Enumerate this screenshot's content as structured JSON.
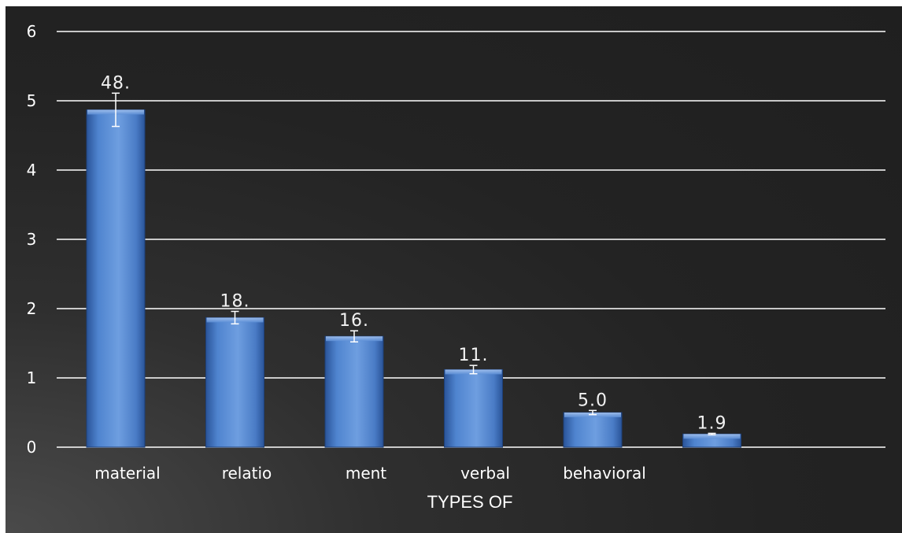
{
  "chart_data": {
    "type": "bar",
    "categories": [
      "material",
      "relatio",
      "ment",
      "verbal",
      "behavioral",
      ""
    ],
    "values": [
      4.87,
      1.87,
      1.6,
      1.12,
      0.5,
      0.19
    ],
    "error_bars": [
      0.24,
      0.09,
      0.08,
      0.06,
      0.03,
      0.01
    ],
    "data_labels": [
      "48.",
      "18.",
      "16.",
      "11.",
      "5.0",
      "1.9"
    ],
    "y_ticks": [
      "0",
      "1",
      "2",
      "3",
      "4",
      "5",
      "6"
    ],
    "ylim": [
      0,
      6
    ],
    "xlabel": "TYPES OF",
    "ylabel": "",
    "grid": true,
    "colors": {
      "bar_top": "#6e9ee0",
      "bar_bottom": "#2f5fa8",
      "grid": "#ffffff",
      "text": "#ffffff"
    }
  }
}
